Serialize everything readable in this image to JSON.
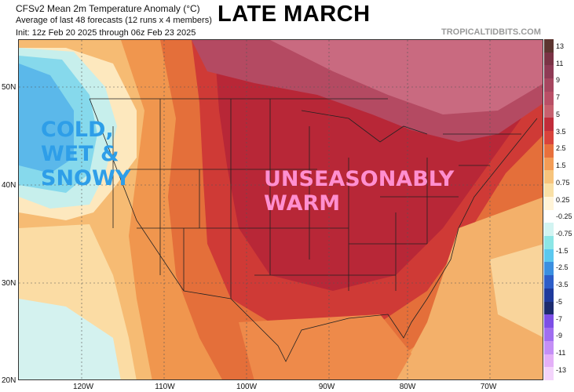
{
  "header": {
    "line1": "CFSv2 Mean 2m Temperature Anomaly (°C)",
    "line2": "Average of last 48 forecasts (12 runs x 4 members)",
    "line3": "Init: 12z Feb 20 2025 through 06z Feb 23 2025",
    "title": "LATE MARCH",
    "source": "TROPICALTIDBITS.COM"
  },
  "map": {
    "lat_labels": [
      "50N",
      "40N",
      "30N",
      "20N"
    ],
    "lon_labels": [
      "120W",
      "110W",
      "100W",
      "90W",
      "80W",
      "70W"
    ],
    "annotations": {
      "cold": [
        "COLD,",
        "WET &",
        "SNOWY"
      ],
      "warm": [
        "UNSEASONABLY",
        "WARM"
      ]
    }
  },
  "colorbar": {
    "labels": [
      "13",
      "11",
      "9",
      "7",
      "5",
      "3.5",
      "2.5",
      "1.5",
      "0.75",
      "0.25",
      "-0.25",
      "-0.75",
      "-1.5",
      "-2.5",
      "-3.5",
      "-5",
      "-7",
      "-9",
      "-11",
      "-13"
    ],
    "colors": [
      "#5c3530",
      "#7a3345",
      "#8e3a55",
      "#a6465f",
      "#b94f66",
      "#c7606e",
      "#c02c3a",
      "#d8433b",
      "#e8703c",
      "#f39c56",
      "#f7c47c",
      "#f9e0a6",
      "#fff4d8",
      "#ffffff",
      "#d2f4f2",
      "#8ce6e6",
      "#5bc8ef",
      "#3b8fe0",
      "#2d5dc8",
      "#1f3a9c",
      "#1c2b6e",
      "#7d4fe6",
      "#a06ef0",
      "#c48ff6",
      "#e4b0f8",
      "#f3d4fb"
    ]
  }
}
